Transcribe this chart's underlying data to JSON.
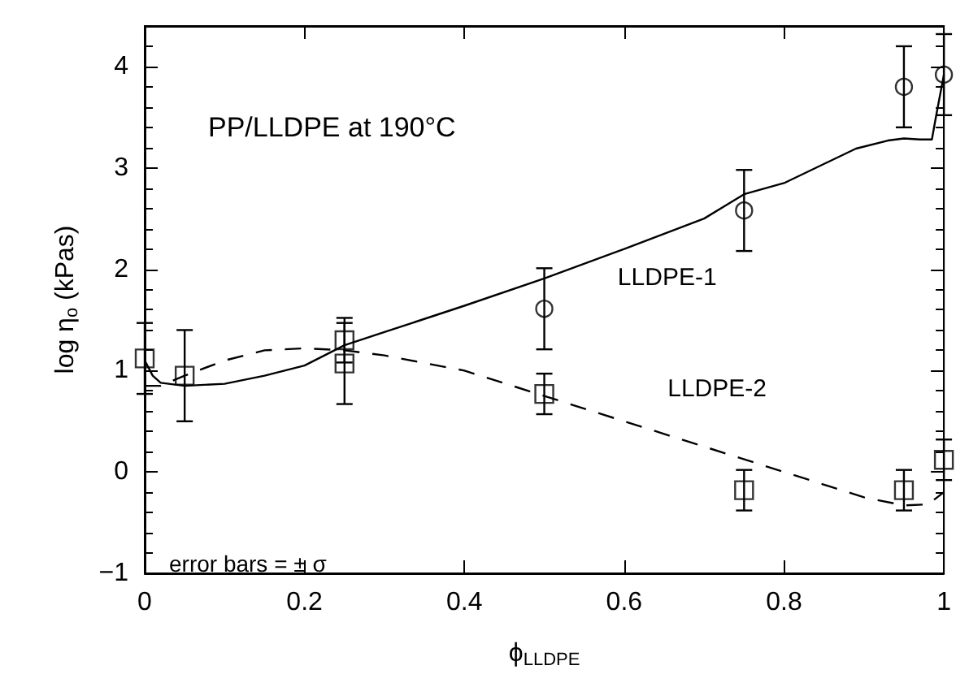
{
  "chart_data": {
    "type": "line",
    "xlabel": "ϕ$_{LLDPE}$",
    "ylabel": "log η$_{o}$ (kPas)",
    "annotations": [
      "PP/LLDPE at 190°C",
      "error bars = ± σ"
    ],
    "xlim": [
      0,
      1
    ],
    "xticks": [
      0,
      0.2,
      0.4,
      0.6,
      0.8,
      1
    ],
    "ylim": [
      -1,
      4.4
    ],
    "yticks": [
      -1,
      0,
      1,
      2,
      3,
      4
    ],
    "grid": false,
    "legend": false,
    "series": [
      {
        "name": "LLDPE-1",
        "color": "#000000",
        "line_style": "solid",
        "marker": "none",
        "x": [
          0,
          0.01,
          0.02,
          0.05,
          0.1,
          0.15,
          0.2,
          0.25,
          0.3,
          0.4,
          0.5,
          0.6,
          0.7,
          0.75,
          0.8,
          0.89,
          0.93,
          0.95,
          0.97,
          0.985,
          0.99,
          1
        ],
        "values": [
          1.1,
          0.95,
          0.88,
          0.85,
          0.87,
          0.95,
          1.05,
          1.25,
          1.38,
          1.64,
          1.91,
          2.2,
          2.5,
          2.74,
          2.85,
          3.19,
          3.27,
          3.29,
          3.28,
          3.28,
          3.5,
          3.92
        ]
      },
      {
        "type": "scatter",
        "color": "#000000",
        "marker": "circle",
        "x": [
          0.5,
          0.75,
          0.95,
          1
        ],
        "values": [
          1.61,
          2.58,
          3.8,
          3.92
        ],
        "errors": [
          0.4,
          0.4,
          0.4,
          0.4
        ]
      },
      {
        "name": "LLDPE-2",
        "color": "#000000",
        "line_style": "dashed",
        "marker": "none",
        "x": [
          0,
          0.02,
          0.05,
          0.1,
          0.15,
          0.2,
          0.25,
          0.3,
          0.4,
          0.5,
          0.6,
          0.7,
          0.8,
          0.9,
          0.95,
          0.98,
          1
        ],
        "values": [
          0.85,
          0.85,
          0.95,
          1.1,
          1.2,
          1.22,
          1.2,
          1.15,
          1.0,
          0.75,
          0.5,
          0.25,
          0.0,
          -0.25,
          -0.33,
          -0.32,
          -0.2
        ]
      },
      {
        "type": "scatter",
        "color": "#000000",
        "marker": "square",
        "x": [
          0,
          0.05,
          0.25,
          0.25,
          0.5,
          0.75,
          0.95,
          1
        ],
        "values": [
          1.12,
          0.95,
          1.3,
          1.07,
          0.77,
          -0.18,
          -0.18,
          0.12
        ],
        "errors": [
          0.35,
          0.45,
          0.22,
          0.4,
          0.2,
          0.2,
          0.2,
          0.2
        ]
      }
    ]
  }
}
